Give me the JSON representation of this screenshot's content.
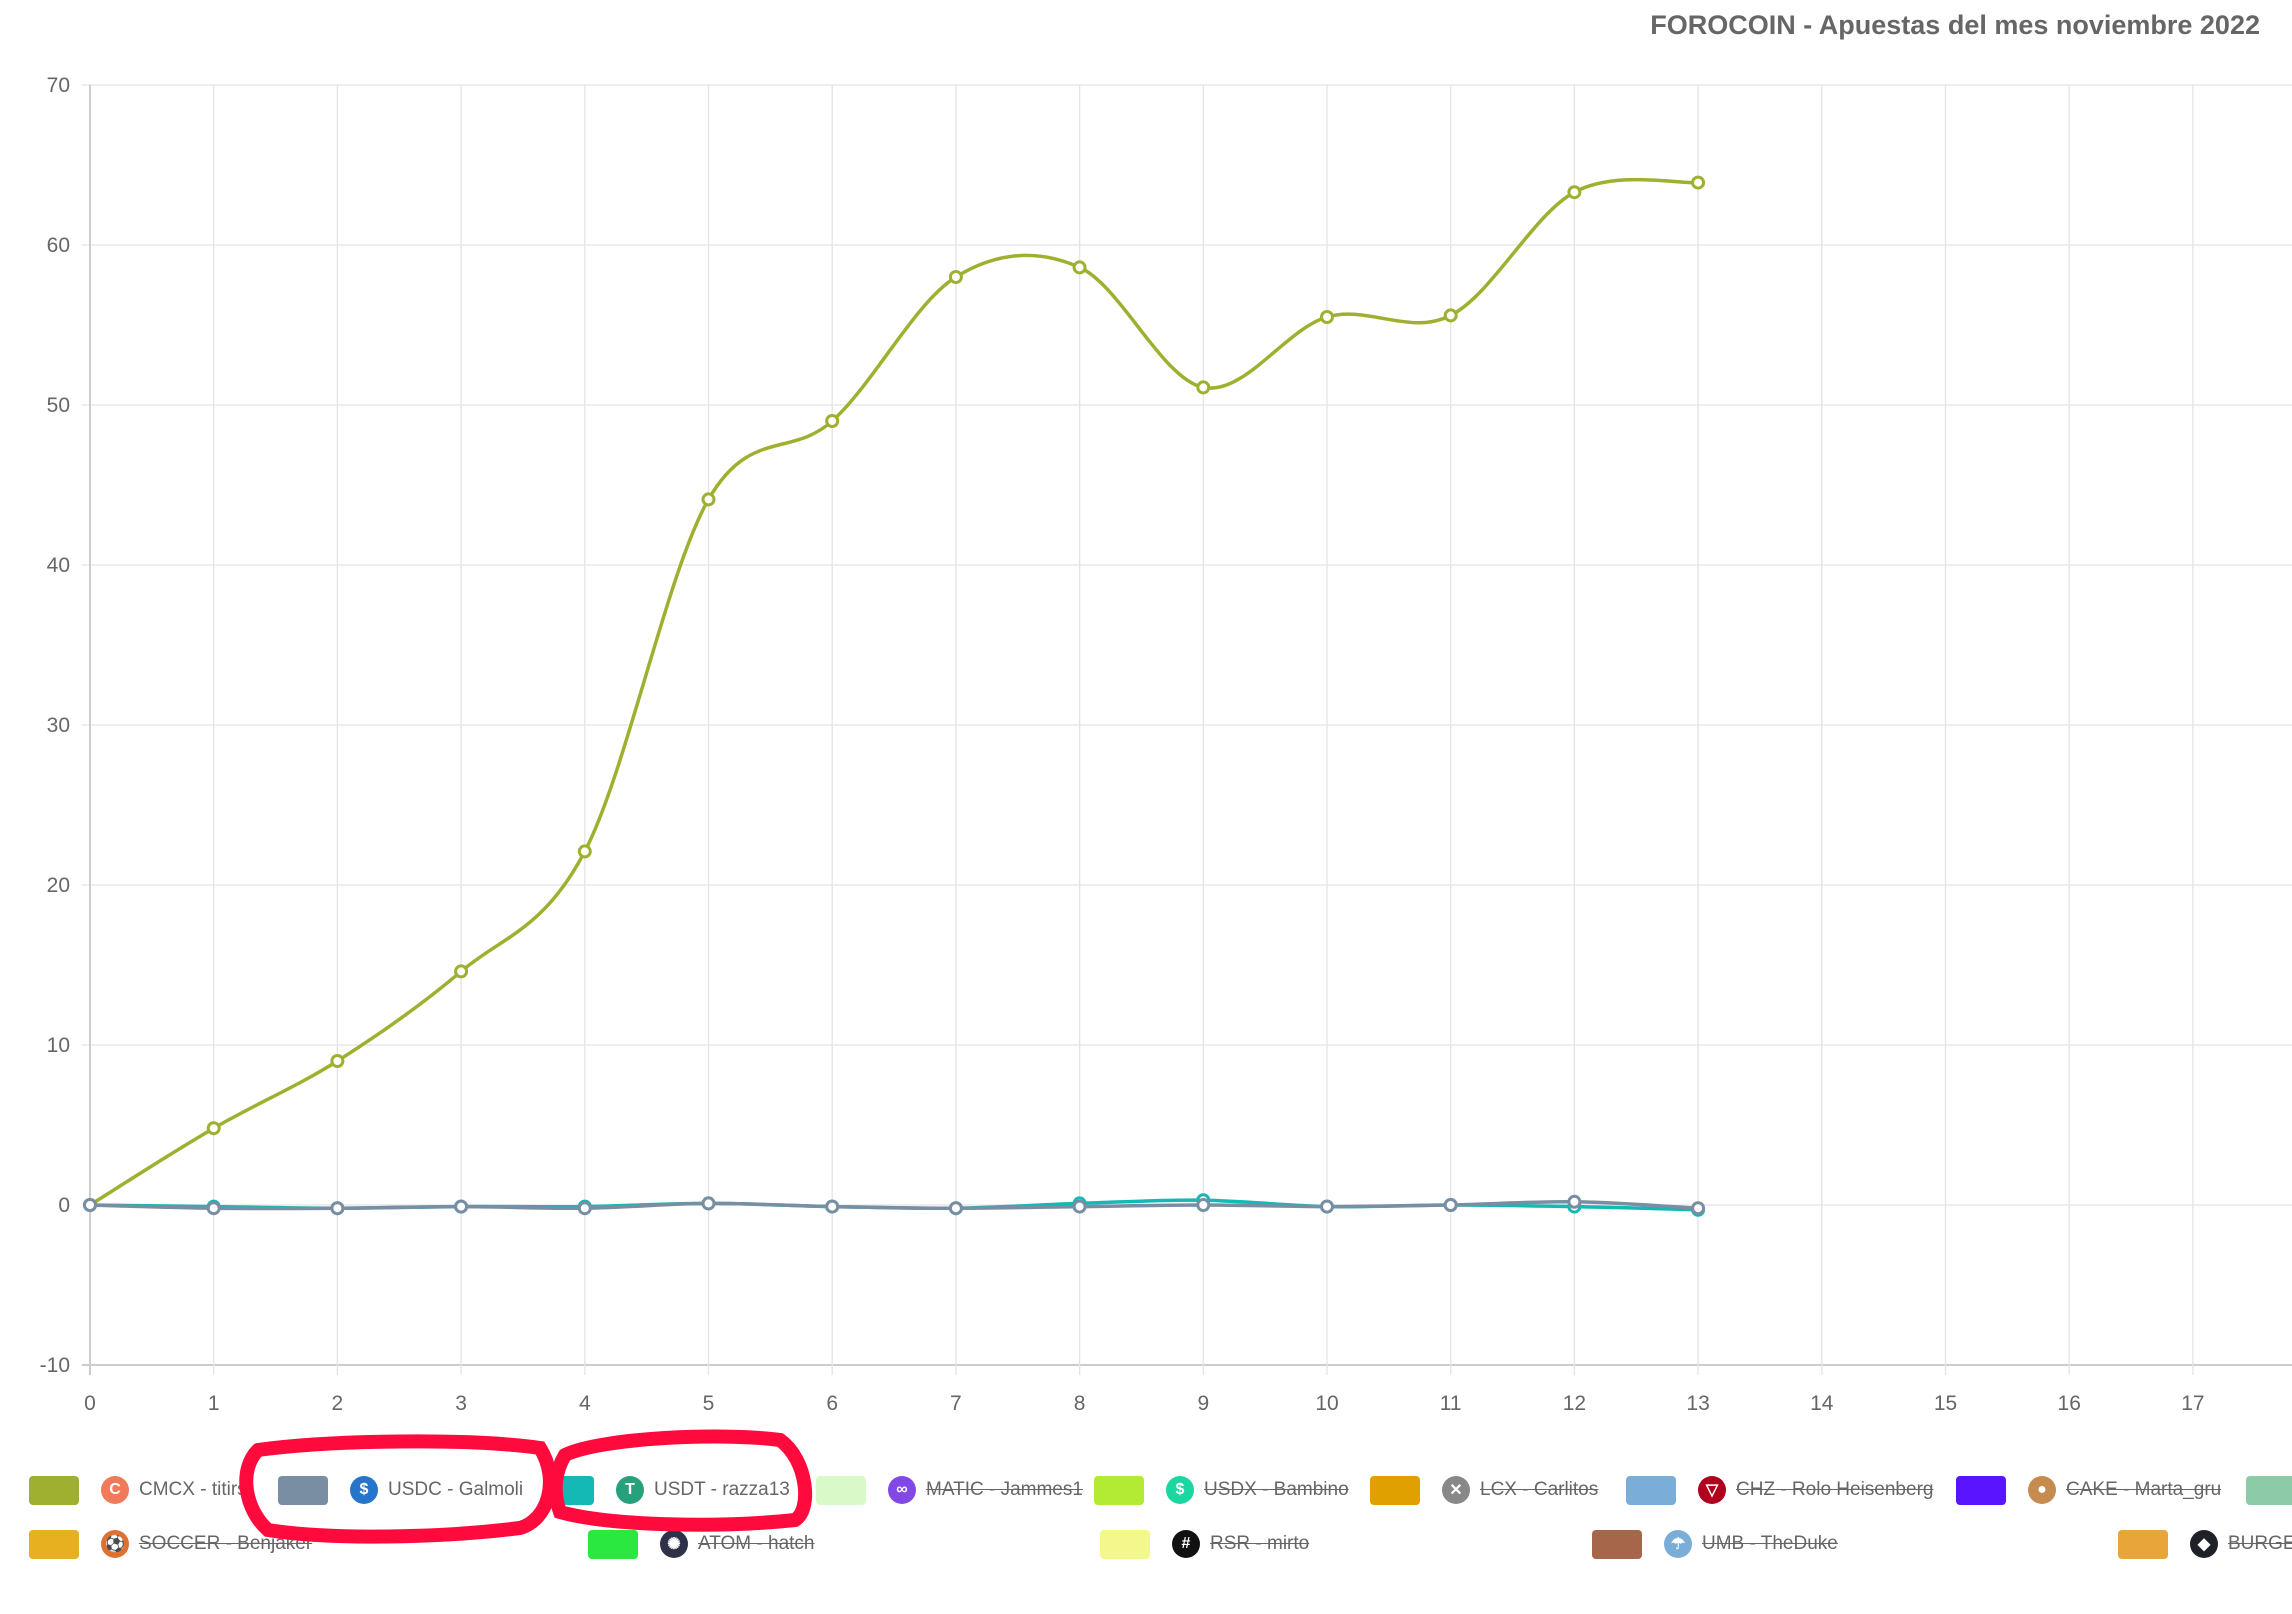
{
  "chart_data": {
    "type": "line",
    "title": "FOROCOIN - Apuestas del mes noviembre 2022",
    "xlabel": "",
    "ylabel": "",
    "x": [
      0,
      1,
      2,
      3,
      4,
      5,
      6,
      7,
      8,
      9,
      10,
      11,
      12,
      13
    ],
    "xlim": [
      0,
      18.2
    ],
    "ylim": [
      -10,
      70
    ],
    "x_ticks": [
      "0",
      "1",
      "2",
      "3",
      "4",
      "5",
      "6",
      "7",
      "8",
      "9",
      "10",
      "11",
      "12",
      "13",
      "14",
      "15",
      "16",
      "17"
    ],
    "y_ticks": [
      "-10",
      "0",
      "10",
      "20",
      "30",
      "40",
      "50",
      "60",
      "70"
    ],
    "grid": true,
    "legend_position": "bottom",
    "series": [
      {
        "name": "CMCX - titirs",
        "color": "#9fb030",
        "values": [
          0,
          4.8,
          9,
          14.6,
          22.1,
          44.1,
          49,
          58,
          58.6,
          51.1,
          55.5,
          55.6,
          63.3,
          63.9
        ]
      },
      {
        "name": "USDT - razza13",
        "color": "#14b8b4",
        "values": [
          0,
          -0.1,
          -0.2,
          -0.1,
          -0.1,
          0.1,
          -0.1,
          -0.2,
          0.1,
          0.3,
          -0.1,
          0,
          -0.1,
          -0.3
        ]
      },
      {
        "name": "USDC - Galmoli",
        "color": "#7a8ea3",
        "values": [
          0,
          -0.2,
          -0.2,
          -0.1,
          -0.2,
          0.1,
          -0.1,
          -0.2,
          -0.1,
          0,
          -0.1,
          0,
          0.2,
          -0.2
        ]
      }
    ],
    "legend": [
      {
        "label": "CMCX - titirs",
        "color": "#9fb030",
        "icon": "cmcx-icon",
        "icon_color": "#f07a5a",
        "hidden": false
      },
      {
        "label": "USDC - Galmoli",
        "color": "#7a8ea3",
        "icon": "usdc-icon",
        "icon_color": "#2775ca",
        "hidden": false
      },
      {
        "label": "USDT - razza13",
        "color": "#14b8b4",
        "icon": "usdt-icon",
        "icon_color": "#26a17b",
        "hidden": false
      },
      {
        "label": "MATIC - Jammes1",
        "color": "#daf9c9",
        "icon": "matic-icon",
        "icon_color": "#8247e5",
        "hidden": true
      },
      {
        "label": "USDX - Bambino",
        "color": "#b3ea33",
        "icon": "usdx-icon",
        "icon_color": "#1bd6a0",
        "hidden": true
      },
      {
        "label": "LCX - Carlitos",
        "color": "#e0a100",
        "icon": "lcx-icon",
        "icon_color": "#888888",
        "hidden": true
      },
      {
        "label": "CHZ - Rolo Heisenberg",
        "color": "#7aaed8",
        "icon": "chz-icon",
        "icon_color": "#b0001e",
        "hidden": true
      },
      {
        "label": "CAKE - Marta_gru",
        "color": "#5a14ff",
        "icon": "cake-icon",
        "icon_color": "#c68b4e",
        "hidden": true
      },
      {
        "label": "",
        "color": "#8ccaa8",
        "icon": "",
        "icon_color": "",
        "hidden": true
      },
      {
        "label": "SOCCER - Benjaker",
        "color": "#e6b020",
        "icon": "soccer-icon",
        "icon_color": "#e07030",
        "hidden": true
      },
      {
        "label": "ATOM - hatch",
        "color": "#2ae840",
        "icon": "atom-icon",
        "icon_color": "#2e3148",
        "hidden": true
      },
      {
        "label": "RSR - mirto",
        "color": "#f4f88c",
        "icon": "rsr-icon",
        "icon_color": "#111111",
        "hidden": true
      },
      {
        "label": "UMB - TheDuke",
        "color": "#a5664a",
        "icon": "umb-icon",
        "icon_color": "#7aaed8",
        "hidden": true
      },
      {
        "label": "BURGER",
        "color": "#e8a63a",
        "icon": "burger-icon",
        "icon_color": "#1e2228",
        "hidden": true
      }
    ]
  },
  "annotations": {
    "highlight_color": "#ff0a3c"
  }
}
